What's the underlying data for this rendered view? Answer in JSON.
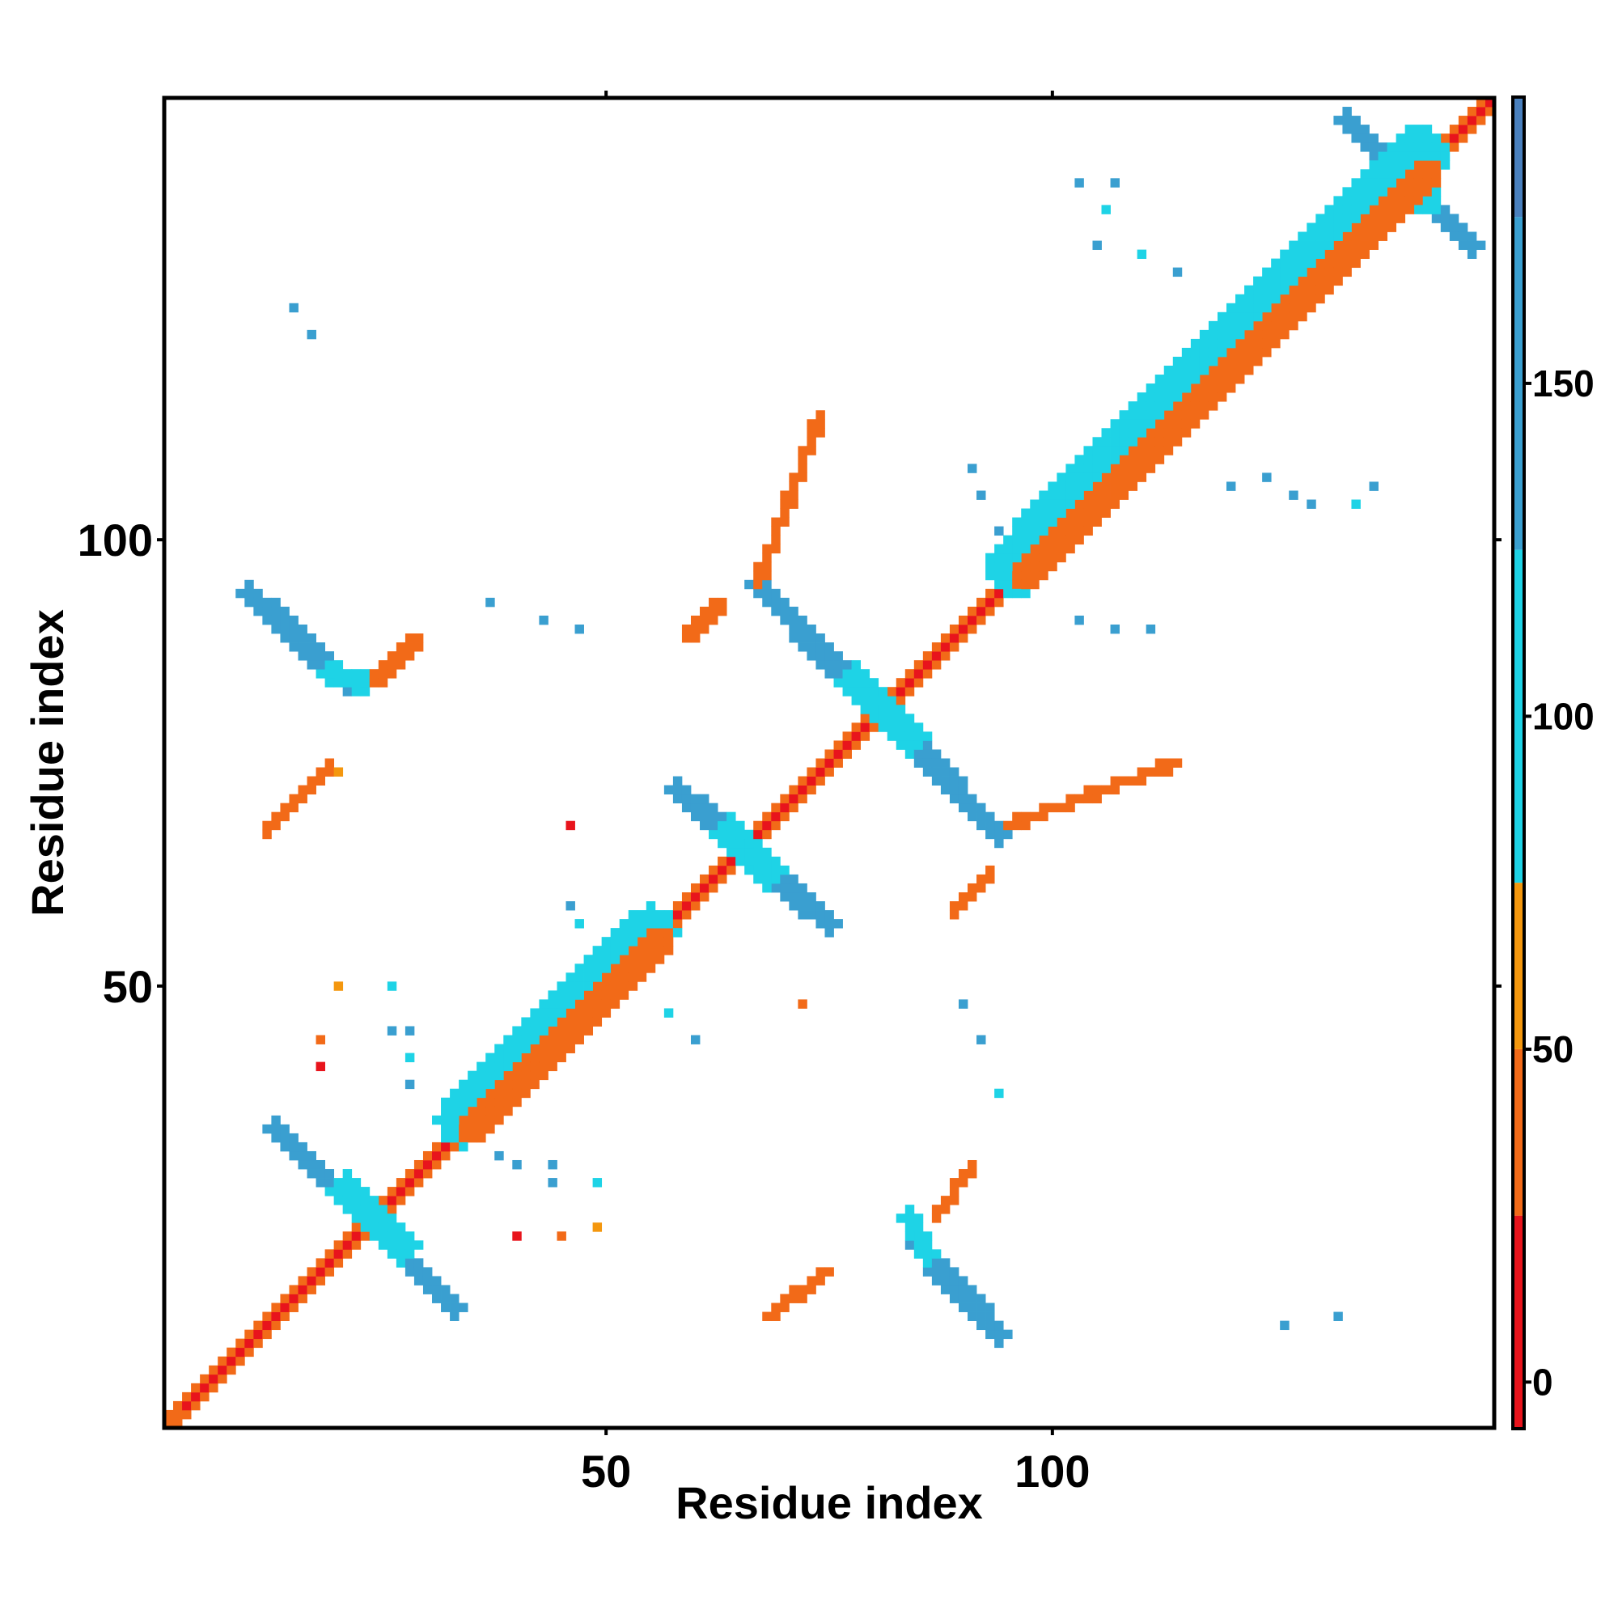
{
  "chart_data": {
    "type": "heatmap",
    "title": "",
    "xlabel": "Residue index",
    "ylabel": "Residue index",
    "xlim": [
      1,
      149
    ],
    "ylim": [
      1,
      149
    ],
    "x_ticks": [
      50,
      100
    ],
    "y_ticks": [
      50,
      100
    ],
    "x_tick_labels": [
      "50",
      "100"
    ],
    "y_tick_labels": [
      "50",
      "100"
    ],
    "grid": false,
    "colorbar": {
      "ticks": [
        0,
        50,
        100,
        150
      ],
      "tick_labels": [
        "0",
        "50",
        "100",
        "150"
      ],
      "range": [
        -7,
        193
      ],
      "segments": [
        {
          "from": -7,
          "to": 25,
          "color": "#e8141c"
        },
        {
          "from": 25,
          "to": 50,
          "color": "#f26a18"
        },
        {
          "from": 50,
          "to": 75,
          "color": "#f4970e"
        },
        {
          "from": 75,
          "to": 125,
          "color": "#1ed3e6"
        },
        {
          "from": 125,
          "to": 175,
          "color": "#3a9fd0"
        },
        {
          "from": 175,
          "to": 193,
          "color": "#4a80bd"
        }
      ]
    },
    "contact_bands": [
      {
        "name": "main-diagonal",
        "from": [
          1,
          1
        ],
        "to": [
          149,
          149
        ],
        "width": 2.2,
        "value": 40
      },
      {
        "name": "diagonal-inner-stripe",
        "from": [
          3,
          3
        ],
        "to": [
          149,
          149
        ],
        "width": 0.8,
        "value": 10
      },
      {
        "name": "cross-1-a",
        "from": [
          13,
          34
        ],
        "to": [
          33,
          14
        ],
        "width": 2.6,
        "value": 170
      },
      {
        "name": "cross-1-b",
        "from": [
          21,
          27
        ],
        "to": [
          27,
          21
        ],
        "width": 4,
        "value": 100
      },
      {
        "name": "cross-2-a",
        "from": [
          58,
          72
        ],
        "to": [
          75,
          57
        ],
        "width": 2.6,
        "value": 170
      },
      {
        "name": "cross-2-b",
        "from": [
          64,
          67
        ],
        "to": [
          68,
          63
        ],
        "width": 4,
        "value": 100
      },
      {
        "name": "cross-3-a",
        "from": [
          67,
          95
        ],
        "to": [
          94,
          67
        ],
        "width": 2.6,
        "value": 170
      },
      {
        "name": "cross-3-b",
        "from": [
          78,
          84
        ],
        "to": [
          84,
          78
        ],
        "width": 4,
        "value": 100
      },
      {
        "name": "cross-4-a",
        "from": [
          133,
          147
        ],
        "to": [
          147,
          133
        ],
        "width": 2.2,
        "value": 170
      },
      {
        "name": "cross-4-b",
        "from": [
          138,
          142
        ],
        "to": [
          142,
          138
        ],
        "width": 3,
        "value": 100
      },
      {
        "name": "band-13-94-a",
        "from": [
          10,
          94
        ],
        "to": [
          21,
          84
        ],
        "width": 2.6,
        "value": 170
      },
      {
        "name": "band-13-94-b",
        "from": [
          19,
          85
        ],
        "to": [
          23,
          84
        ],
        "width": 2.5,
        "value": 100
      },
      {
        "name": "band-94-13-a",
        "from": [
          85,
          21
        ],
        "to": [
          94,
          11
        ],
        "width": 2.6,
        "value": 170
      },
      {
        "name": "band-94-13-b",
        "from": [
          84,
          24
        ],
        "to": [
          86,
          20
        ],
        "width": 2.5,
        "value": 100
      },
      {
        "name": "upper-helix-a",
        "from": [
          96,
          97
        ],
        "to": [
          141,
          143
        ],
        "width": 7,
        "value": 110
      },
      {
        "name": "upper-helix-b",
        "from": [
          97,
          96
        ],
        "to": [
          142,
          141
        ],
        "width": 3,
        "value": 40
      },
      {
        "name": "lower-helix-a",
        "from": [
          34,
          35
        ],
        "to": [
          55,
          56
        ],
        "width": 6,
        "value": 110
      },
      {
        "name": "lower-helix-b",
        "from": [
          35,
          34
        ],
        "to": [
          56,
          55
        ],
        "width": 3,
        "value": 40
      }
    ],
    "contact_arcs": [
      {
        "name": "arc-upper-mid",
        "from": [
          67,
          95
        ],
        "to": [
          74,
          114
        ],
        "width": 1.4,
        "value": 30
      },
      {
        "name": "arc-right-mid",
        "from": [
          95,
          68
        ],
        "to": [
          114,
          75
        ],
        "width": 1.4,
        "value": 30
      },
      {
        "name": "arc-left-upper",
        "from": [
          24,
          84
        ],
        "to": [
          29,
          89
        ],
        "width": 1.4,
        "value": 40
      },
      {
        "name": "arc-left-mid",
        "from": [
          12,
          67
        ],
        "to": [
          19,
          75
        ],
        "width": 1.4,
        "value": 30
      },
      {
        "name": "arc-lower-mid",
        "from": [
          68,
          13
        ],
        "to": [
          75,
          18
        ],
        "width": 1.4,
        "value": 30
      },
      {
        "name": "arc-lower-right",
        "from": [
          87,
          24
        ],
        "to": [
          91,
          30
        ],
        "width": 1.4,
        "value": 30
      },
      {
        "name": "arc-right-lower",
        "from": [
          89,
          58
        ],
        "to": [
          93,
          63
        ],
        "width": 1.4,
        "value": 30
      },
      {
        "name": "arc-mid-left",
        "from": [
          59,
          89
        ],
        "to": [
          63,
          93
        ],
        "width": 1.4,
        "value": 40
      }
    ],
    "contact_points": [
      [
        15,
        126,
        150
      ],
      [
        17,
        123,
        170
      ],
      [
        18,
        44,
        40
      ],
      [
        18,
        41,
        10
      ],
      [
        20,
        74,
        50
      ],
      [
        20,
        50,
        50
      ],
      [
        26,
        50,
        110
      ],
      [
        26,
        45,
        170
      ],
      [
        28,
        45,
        170
      ],
      [
        28,
        42,
        110
      ],
      [
        28,
        39,
        170
      ],
      [
        38,
        31,
        170
      ],
      [
        40,
        30,
        170
      ],
      [
        40,
        22,
        10
      ],
      [
        44,
        30,
        170
      ],
      [
        44,
        28,
        170
      ],
      [
        45,
        22,
        30
      ],
      [
        49,
        28,
        110
      ],
      [
        49,
        23,
        50
      ],
      [
        37,
        93,
        150
      ],
      [
        43,
        91,
        170
      ],
      [
        47,
        90,
        170
      ],
      [
        46,
        59,
        170
      ],
      [
        47,
        57,
        110
      ],
      [
        57,
        47,
        110
      ],
      [
        60,
        44,
        170
      ],
      [
        46,
        68,
        10
      ],
      [
        72,
        48,
        30
      ],
      [
        90,
        48,
        170
      ],
      [
        92,
        44,
        170
      ],
      [
        94,
        38,
        110
      ],
      [
        91,
        108,
        170
      ],
      [
        92,
        105,
        170
      ],
      [
        94,
        101,
        170
      ],
      [
        103,
        91,
        170
      ],
      [
        107,
        90,
        170
      ],
      [
        111,
        90,
        170
      ],
      [
        103,
        140,
        130
      ],
      [
        107,
        140,
        130
      ],
      [
        106,
        137,
        110
      ],
      [
        105,
        133,
        170
      ],
      [
        110,
        132,
        110
      ],
      [
        114,
        130,
        170
      ],
      [
        120,
        106,
        130
      ],
      [
        124,
        107,
        150
      ],
      [
        127,
        105,
        130
      ],
      [
        129,
        104,
        170
      ],
      [
        134,
        104,
        110
      ],
      [
        136,
        106,
        170
      ],
      [
        132,
        13,
        150
      ],
      [
        126,
        12,
        170
      ]
    ]
  }
}
